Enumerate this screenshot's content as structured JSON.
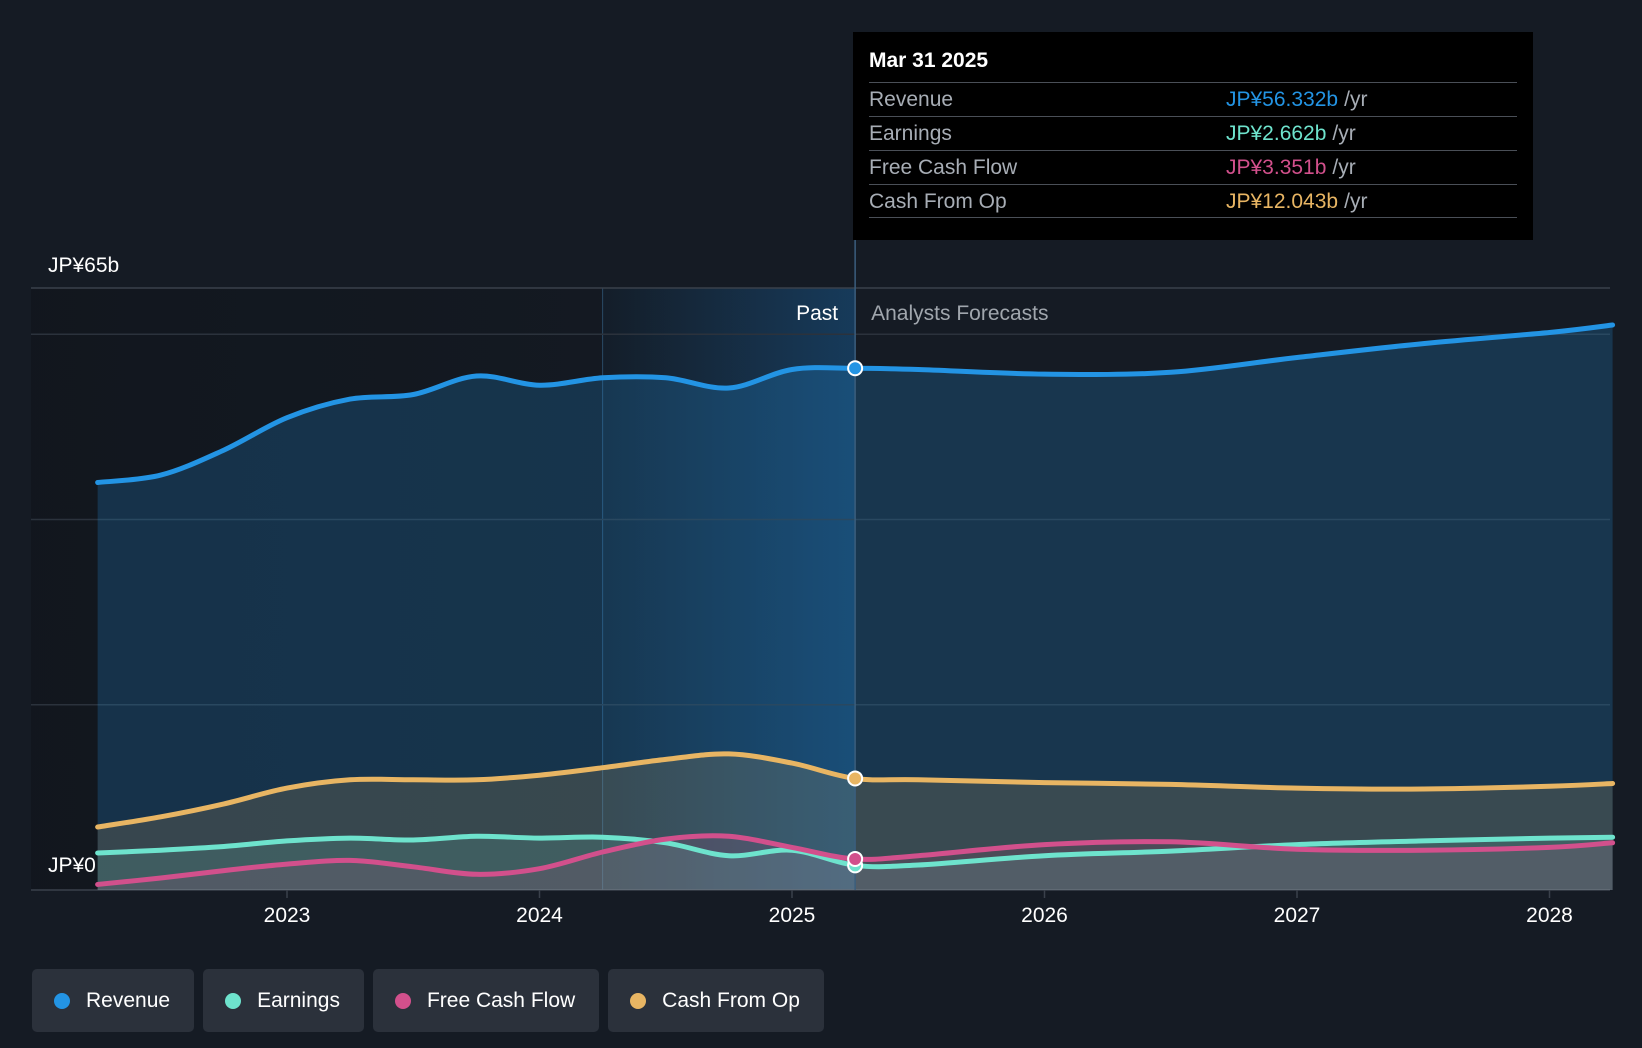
{
  "chart_data": {
    "type": "area",
    "ylim": [
      0,
      65
    ],
    "y_tick_labels": [
      "JP¥0",
      "JP¥65b"
    ],
    "x_tick_labels": [
      "2023",
      "2024",
      "2025",
      "2026",
      "2027",
      "2028"
    ],
    "x_ticks": [
      2023,
      2024,
      2025,
      2026,
      2027,
      2028
    ],
    "xlim": [
      2022.05,
      2028.25
    ],
    "past_label": "Past",
    "forecast_label": "Analysts Forecasts",
    "divider_x": 2025.25,
    "highlight_start_x": 2024.25,
    "grid": true,
    "legend_position": "bottom-left",
    "series": [
      {
        "name": "Revenue",
        "color": "#2394e4",
        "fill_opacity": 0.22,
        "points": [
          [
            2022.25,
            44
          ],
          [
            2022.5,
            44.8
          ],
          [
            2022.75,
            47.5
          ],
          [
            2023.0,
            51
          ],
          [
            2023.25,
            53
          ],
          [
            2023.5,
            53.5
          ],
          [
            2023.75,
            55.5
          ],
          [
            2024.0,
            54.5
          ],
          [
            2024.25,
            55.3
          ],
          [
            2024.5,
            55.3
          ],
          [
            2024.75,
            54.2
          ],
          [
            2025.0,
            56.2
          ],
          [
            2025.25,
            56.332
          ],
          [
            2025.5,
            56.2
          ],
          [
            2026.0,
            55.7
          ],
          [
            2026.5,
            55.9
          ],
          [
            2027.0,
            57.5
          ],
          [
            2027.5,
            59
          ],
          [
            2028.0,
            60.2
          ],
          [
            2028.25,
            61
          ]
        ]
      },
      {
        "name": "Cash From Op",
        "color": "#e8b563",
        "fill_opacity": 0.16,
        "points": [
          [
            2022.25,
            6.8
          ],
          [
            2022.5,
            7.9
          ],
          [
            2022.75,
            9.3
          ],
          [
            2023.0,
            11
          ],
          [
            2023.25,
            11.9
          ],
          [
            2023.5,
            11.9
          ],
          [
            2023.75,
            11.9
          ],
          [
            2024.0,
            12.4
          ],
          [
            2024.25,
            13.2
          ],
          [
            2024.5,
            14.1
          ],
          [
            2024.75,
            14.7
          ],
          [
            2025.0,
            13.7
          ],
          [
            2025.25,
            12.043
          ],
          [
            2025.5,
            11.9
          ],
          [
            2026.0,
            11.6
          ],
          [
            2026.5,
            11.4
          ],
          [
            2027.0,
            11
          ],
          [
            2027.5,
            10.9
          ],
          [
            2028.0,
            11.2
          ],
          [
            2028.25,
            11.5
          ]
        ]
      },
      {
        "name": "Earnings",
        "color": "#6ee3cd",
        "fill_opacity": 0.14,
        "points": [
          [
            2022.25,
            4
          ],
          [
            2022.5,
            4.3
          ],
          [
            2022.75,
            4.7
          ],
          [
            2023.0,
            5.3
          ],
          [
            2023.25,
            5.6
          ],
          [
            2023.5,
            5.4
          ],
          [
            2023.75,
            5.8
          ],
          [
            2024.0,
            5.6
          ],
          [
            2024.25,
            5.7
          ],
          [
            2024.5,
            5.1
          ],
          [
            2024.75,
            3.7
          ],
          [
            2025.0,
            4.3
          ],
          [
            2025.25,
            2.662
          ],
          [
            2025.5,
            2.7
          ],
          [
            2026.0,
            3.7
          ],
          [
            2026.5,
            4.2
          ],
          [
            2027.0,
            4.9
          ],
          [
            2027.5,
            5.3
          ],
          [
            2028.0,
            5.6
          ],
          [
            2028.25,
            5.7
          ]
        ]
      },
      {
        "name": "Free Cash Flow",
        "color": "#d2508c",
        "fill_opacity": 0.12,
        "points": [
          [
            2022.25,
            0.6
          ],
          [
            2022.5,
            1.3
          ],
          [
            2022.75,
            2.1
          ],
          [
            2023.0,
            2.8
          ],
          [
            2023.25,
            3.2
          ],
          [
            2023.5,
            2.5
          ],
          [
            2023.75,
            1.7
          ],
          [
            2024.0,
            2.3
          ],
          [
            2024.25,
            4.1
          ],
          [
            2024.5,
            5.5
          ],
          [
            2024.75,
            5.8
          ],
          [
            2025.0,
            4.6
          ],
          [
            2025.25,
            3.351
          ],
          [
            2025.5,
            3.7
          ],
          [
            2026.0,
            4.9
          ],
          [
            2026.5,
            5.2
          ],
          [
            2027.0,
            4.4
          ],
          [
            2027.5,
            4.3
          ],
          [
            2028.0,
            4.6
          ],
          [
            2028.25,
            5.1
          ]
        ]
      }
    ]
  },
  "tooltip": {
    "date": "Mar 31 2025",
    "suffix": "/yr",
    "rows": [
      {
        "label": "Revenue",
        "value": "JP¥56.332b",
        "color": "#2394e4"
      },
      {
        "label": "Earnings",
        "value": "JP¥2.662b",
        "color": "#6ee3cd"
      },
      {
        "label": "Free Cash Flow",
        "value": "JP¥3.351b",
        "color": "#d2508c"
      },
      {
        "label": "Cash From Op",
        "value": "JP¥12.043b",
        "color": "#e8b563"
      }
    ]
  },
  "legend": [
    {
      "label": "Revenue",
      "color": "#2394e4"
    },
    {
      "label": "Earnings",
      "color": "#6ee3cd"
    },
    {
      "label": "Free Cash Flow",
      "color": "#d2508c"
    },
    {
      "label": "Cash From Op",
      "color": "#e8b563"
    }
  ]
}
